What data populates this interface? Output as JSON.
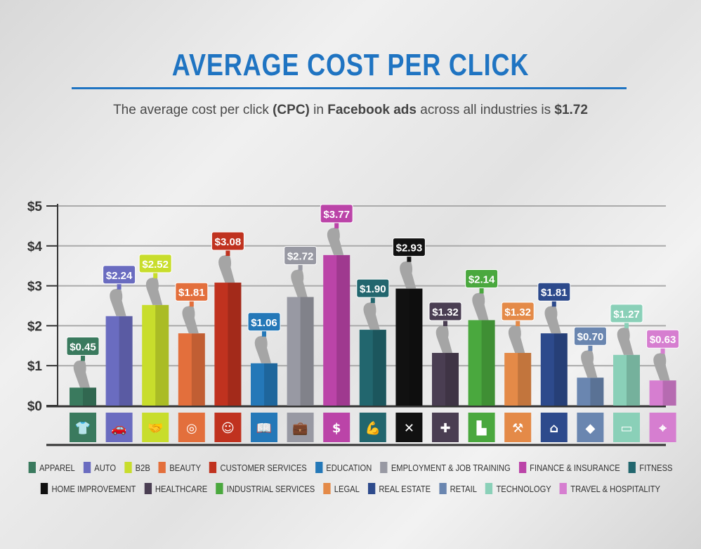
{
  "title": "AVERAGE COST PER CLICK",
  "subtitle": {
    "pre": "The average cost per click ",
    "b1": "(CPC)",
    "mid1": " in ",
    "b2": "Facebook ads",
    "mid2": " across all industries is ",
    "b3": "$1.72"
  },
  "chart_data": {
    "type": "bar",
    "title": "AVERAGE COST PER CLICK",
    "ylim": [
      0,
      5
    ],
    "yticks": [
      "$0",
      "$1",
      "$2",
      "$3",
      "$4",
      "$5"
    ],
    "grid": true,
    "legend_position": "bottom",
    "categories": [
      "APPAREL",
      "AUTO",
      "B2B",
      "BEAUTY",
      "CUSTOMER SERVICES",
      "EDUCATION",
      "EMPLOYMENT & JOB TRAINING",
      "FINANCE & INSURANCE",
      "FITNESS",
      "HOME IMPROVEMENT",
      "HEALTHCARE",
      "INDUSTRIAL SERVICES",
      "LEGAL",
      "REAL ESTATE",
      "RETAIL",
      "TECHNOLOGY",
      "TRAVEL & HOSPITALITY"
    ],
    "values": [
      0.45,
      2.24,
      2.52,
      1.81,
      3.08,
      1.06,
      2.72,
      3.77,
      1.9,
      2.93,
      1.32,
      2.14,
      1.32,
      1.81,
      0.7,
      1.27,
      0.63
    ],
    "labels": [
      "$0.45",
      "$2.24",
      "$2.52",
      "$1.81",
      "$3.08",
      "$1.06",
      "$2.72",
      "$3.77",
      "$1.90",
      "$2.93",
      "$1.32",
      "$2.14",
      "$1.32",
      "$1.81",
      "$0.70",
      "$1.27",
      "$0.63"
    ],
    "colors": [
      "#3a7a5e",
      "#6a6cc0",
      "#c8dd2c",
      "#e36f3c",
      "#c0321f",
      "#2478b8",
      "#9899a3",
      "#bb44a8",
      "#22666e",
      "#111111",
      "#4a3e52",
      "#4aa83e",
      "#e48a48",
      "#2d4a8c",
      "#6a86b0",
      "#8ad0b8",
      "#d67ed0"
    ],
    "icons": [
      "tshirt-icon",
      "car-icon",
      "handshake-icon",
      "mirror-icon",
      "headset-icon",
      "book-icon",
      "briefcase-icon",
      "money-bag-icon",
      "muscle-icon",
      "tools-icon",
      "first-aid-icon",
      "factory-icon",
      "gavel-icon",
      "house-icon",
      "tag-icon",
      "laptop-icon",
      "map-pin-icon"
    ]
  }
}
